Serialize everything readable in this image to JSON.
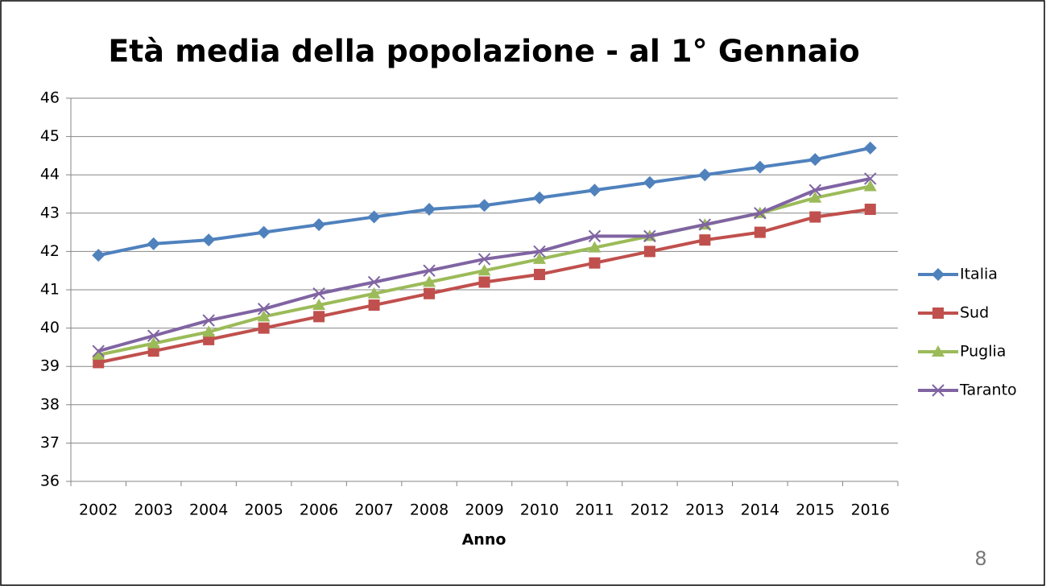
{
  "chart_data": {
    "type": "line",
    "title": "Età media della popolazione  - al 1° Gennaio",
    "x_label": "Anno",
    "categories": [
      "2002",
      "2003",
      "2004",
      "2005",
      "2006",
      "2007",
      "2008",
      "2009",
      "2010",
      "2011",
      "2012",
      "2013",
      "2014",
      "2015",
      "2016"
    ],
    "series": [
      {
        "name": "Italia",
        "color": "#4f81bd",
        "marker": "diamond",
        "values": [
          41.9,
          42.2,
          42.3,
          42.5,
          42.7,
          42.9,
          43.1,
          43.2,
          43.4,
          43.6,
          43.8,
          44.0,
          44.2,
          44.4,
          44.7
        ]
      },
      {
        "name": "Sud",
        "color": "#c0504d",
        "marker": "square",
        "values": [
          39.1,
          39.4,
          39.7,
          40.0,
          40.3,
          40.6,
          40.9,
          41.2,
          41.4,
          41.7,
          42.0,
          42.3,
          42.5,
          42.9,
          43.1
        ]
      },
      {
        "name": "Puglia",
        "color": "#9bbb59",
        "marker": "triangle",
        "values": [
          39.3,
          39.6,
          39.9,
          40.3,
          40.6,
          40.9,
          41.2,
          41.5,
          41.8,
          42.1,
          42.4,
          42.7,
          43.0,
          43.4,
          43.7
        ]
      },
      {
        "name": "Taranto",
        "color": "#8064a2",
        "marker": "x",
        "values": [
          39.4,
          39.8,
          40.2,
          40.5,
          40.9,
          41.2,
          41.5,
          41.8,
          42.0,
          42.4,
          42.4,
          42.7,
          43.0,
          43.6,
          43.9
        ]
      }
    ],
    "ylim": [
      36,
      46
    ],
    "yticks": [
      36,
      37,
      38,
      39,
      40,
      41,
      42,
      43,
      44,
      45,
      46
    ],
    "grid": true,
    "legend": "right"
  },
  "slide_number": 8
}
